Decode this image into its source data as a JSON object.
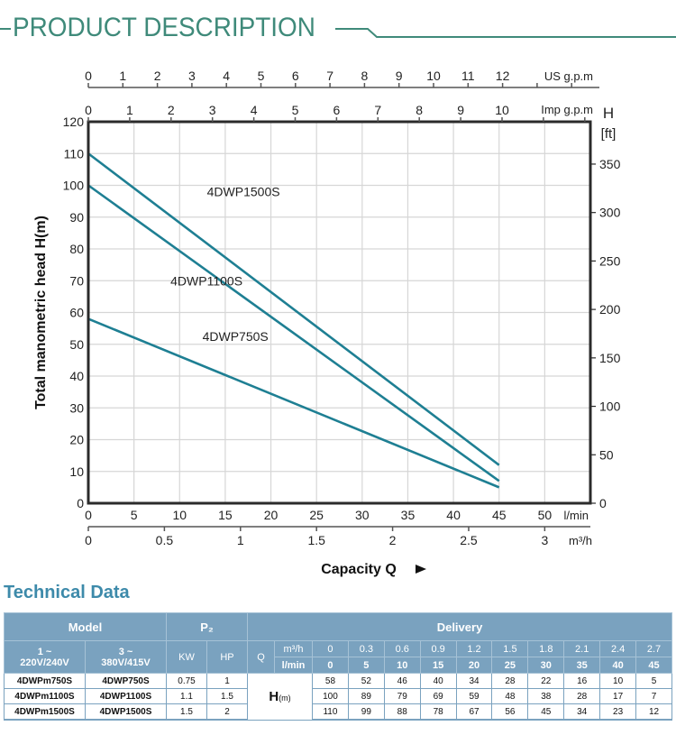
{
  "header": {
    "title": "PRODUCT DESCRIPTION",
    "accent_color": "#3f8a7a"
  },
  "chart_data": {
    "type": "line",
    "title": "",
    "xlabel": "Capacity Q",
    "ylabel": "Total manometric head H(m)",
    "y2label": "H",
    "y2unit": "[ft]",
    "xlim": [
      0,
      55
    ],
    "ylim": [
      0,
      120
    ],
    "grid": true,
    "line_color": "#1e7f93",
    "x_lmin_ticks": [
      0,
      5,
      10,
      15,
      20,
      25,
      30,
      35,
      40,
      45,
      50
    ],
    "x_lmin_unit": "l/min",
    "x_m3h_ticks": [
      0,
      0.5,
      1,
      1.5,
      2,
      2.5,
      3
    ],
    "x_m3h_unit": "m³/h",
    "x_usgpm_ticks": [
      0,
      1,
      2,
      3,
      4,
      5,
      6,
      7,
      8,
      9,
      10,
      11,
      12
    ],
    "x_usgpm_unit": "US g.p.m",
    "x_impgpm_ticks": [
      0,
      1,
      2,
      3,
      4,
      5,
      6,
      7,
      8,
      9,
      10
    ],
    "x_impgpm_unit": "Imp g.p.m",
    "y_ticks": [
      0,
      10,
      20,
      30,
      40,
      50,
      60,
      70,
      80,
      90,
      100,
      110,
      120
    ],
    "y2_ticks": [
      0,
      50,
      100,
      150,
      200,
      250,
      300,
      350
    ],
    "x": [
      0,
      45
    ],
    "series": [
      {
        "name": "4DWP1500S",
        "values": [
          110,
          12
        ],
        "label_at": [
          13,
          98
        ]
      },
      {
        "name": "4DWP1100S",
        "values": [
          100,
          7
        ],
        "label_at": [
          9,
          70
        ]
      },
      {
        "name": "4DWP750S",
        "values": [
          58,
          5
        ],
        "label_at": [
          12.5,
          52.5
        ]
      }
    ]
  },
  "technical": {
    "title": "Technical Data",
    "headers": {
      "model": "Model",
      "p2": "P₂",
      "delivery": "Delivery",
      "single_phase_1": "1 ~",
      "single_phase_2": "220V/240V",
      "three_phase_1": "3 ~",
      "three_phase_2": "380V/415V",
      "kw": "KW",
      "hp": "HP",
      "q": "Q",
      "unit_m3h": "m³/h",
      "unit_lmin": "l/min",
      "h_label": "H",
      "h_unit": "(m)"
    },
    "q_m3h": [
      "0",
      "0.3",
      "0.6",
      "0.9",
      "1.2",
      "1.5",
      "1.8",
      "2.1",
      "2.4",
      "2.7"
    ],
    "q_lmin": [
      "0",
      "5",
      "10",
      "15",
      "20",
      "25",
      "30",
      "35",
      "40",
      "45"
    ],
    "rows": [
      {
        "single": "4DWPm750S",
        "three": "4DWP750S",
        "kw": "0.75",
        "hp": "1",
        "h": [
          "58",
          "52",
          "46",
          "40",
          "34",
          "28",
          "22",
          "16",
          "10",
          "5"
        ]
      },
      {
        "single": "4DWPm1100S",
        "three": "4DWP1100S",
        "kw": "1.1",
        "hp": "1.5",
        "h": [
          "100",
          "89",
          "79",
          "69",
          "59",
          "48",
          "38",
          "28",
          "17",
          "7"
        ]
      },
      {
        "single": "4DWPm1500S",
        "three": "4DWP1500S",
        "kw": "1.5",
        "hp": "2",
        "h": [
          "110",
          "99",
          "88",
          "78",
          "67",
          "56",
          "45",
          "34",
          "23",
          "12"
        ]
      }
    ]
  }
}
